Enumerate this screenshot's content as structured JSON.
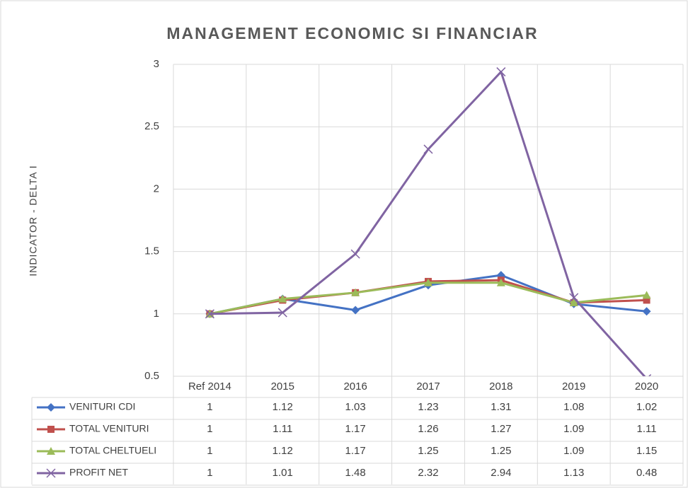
{
  "chart_data": {
    "type": "line",
    "title": "MANAGEMENT ECONOMIC SI FINANCIAR",
    "y_label": "INDICATOR - DELTA I",
    "categories": [
      "Ref 2014",
      "2015",
      "2016",
      "2017",
      "2018",
      "2019",
      "2020"
    ],
    "series": [
      {
        "name": "VENITURI CDI",
        "color": "#4472c4",
        "marker": "diamond",
        "values": [
          1,
          1.12,
          1.03,
          1.23,
          1.31,
          1.08,
          1.02
        ]
      },
      {
        "name": "TOTAL VENITURI",
        "color": "#c0504d",
        "marker": "square",
        "values": [
          1,
          1.11,
          1.17,
          1.26,
          1.27,
          1.09,
          1.11
        ]
      },
      {
        "name": "TOTAL CHELTUELI",
        "color": "#9bbb59",
        "marker": "triangle",
        "values": [
          1,
          1.12,
          1.17,
          1.25,
          1.25,
          1.09,
          1.15
        ]
      },
      {
        "name": "PROFIT NET",
        "color": "#8064a2",
        "marker": "x",
        "values": [
          1,
          1.01,
          1.48,
          2.32,
          2.94,
          1.13,
          0.48
        ]
      }
    ],
    "ylim": [
      0.5,
      3
    ],
    "yticks": [
      0.5,
      1,
      1.5,
      2,
      2.5,
      3
    ],
    "grid": true,
    "data_table": true
  }
}
